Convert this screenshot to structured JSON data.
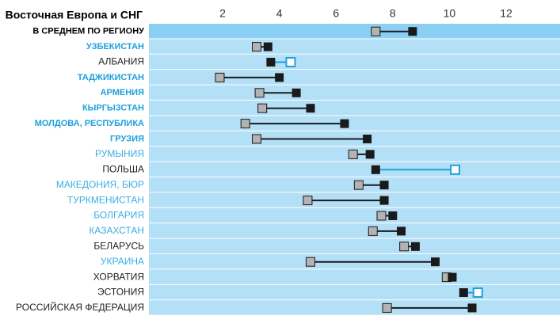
{
  "chart_data": {
    "type": "dumbbell",
    "title": "Восточная Европа и СНГ",
    "categories": [
      "В СРЕДНЕМ ПО РЕГИОНУ",
      "УЗБЕКИСТАН",
      "АЛБАНИЯ",
      "ТАДЖИКИСТАН",
      "АРМЕНИЯ",
      "КЫРГЫЗСТАН",
      "МОЛДОВА, РЕСПУБЛИКА",
      "ГРУЗИЯ",
      "РУМЫНИЯ",
      "ПОЛЬША",
      "МАКЕДОНИЯ, БЮР",
      "ТУРКМЕНИСТАН",
      "БОЛГАРИЯ",
      "КАЗАХСТАН",
      "БЕЛАРУСЬ",
      "УКРАИНА",
      "ХОРВАТИЯ",
      "ЭСТОНИЯ",
      "РОССИЙСКАЯ ФЕДЕРАЦИЯ"
    ],
    "label_styles": [
      "bold-black",
      "bold-blue",
      "black",
      "bold-blue",
      "bold-blue",
      "bold-blue",
      "bold-blue",
      "bold-blue",
      "blue",
      "black",
      "blue",
      "blue",
      "blue",
      "blue",
      "black",
      "blue",
      "black",
      "black",
      "black"
    ],
    "series": [
      {
        "color": "#b3b3b3",
        "hollow_color": "#1ea0dc",
        "markers": [
          "filled",
          "filled",
          "hollow",
          "filled",
          "filled",
          "filled",
          "filled",
          "filled",
          "filled",
          "hollow",
          "filled",
          "filled",
          "filled",
          "filled",
          "filled",
          "filled",
          "filled",
          "hollow",
          "filled"
        ],
        "values": [
          7.4,
          3.2,
          4.4,
          1.9,
          3.3,
          3.4,
          2.8,
          3.2,
          6.6,
          10.2,
          6.8,
          5.0,
          7.6,
          7.3,
          8.4,
          5.1,
          9.9,
          11.0,
          7.8
        ]
      },
      {
        "color": "#1a1a1a",
        "values": [
          8.7,
          3.6,
          3.7,
          4.0,
          4.6,
          5.1,
          6.3,
          7.1,
          7.2,
          7.4,
          7.7,
          7.7,
          8.0,
          8.3,
          8.8,
          9.5,
          10.1,
          10.5,
          10.8
        ]
      }
    ],
    "xlim": [
      -0.6,
      13.9
    ],
    "xticks": [
      2,
      4,
      6,
      8,
      10,
      12
    ]
  }
}
